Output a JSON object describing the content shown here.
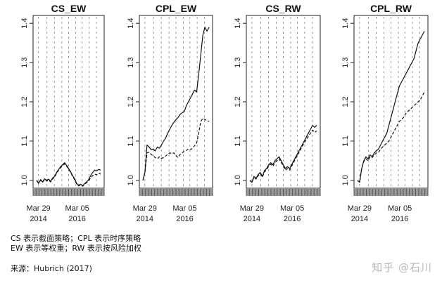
{
  "chart_data": [
    {
      "type": "line",
      "title": "CS_EW",
      "xticks": [
        "Mar 29\n2014",
        "Mar 05\n2016"
      ],
      "yticks": [
        1.0,
        1.1,
        1.2,
        1.3,
        1.4
      ],
      "ylim": [
        0.98,
        1.42
      ],
      "grid": "vertical-dashed",
      "series": [
        {
          "style": "solid",
          "values": [
            1.0,
            0.992,
            1.002,
            0.996,
            1.004,
            1.0,
            1.003,
            0.998,
            1.006,
            1.01,
            1.02,
            1.028,
            1.035,
            1.04,
            1.045,
            1.038,
            1.03,
            1.022,
            1.012,
            1.004,
            0.992,
            0.988,
            0.99,
            0.986,
            0.992,
            0.996,
            1.002,
            1.012,
            1.02,
            1.026,
            1.024,
            1.028,
            1.026
          ]
        },
        {
          "style": "dashed",
          "values": [
            1.0,
            0.994,
            1.0,
            0.995,
            1.002,
            0.998,
            1.001,
            0.996,
            1.004,
            1.008,
            1.018,
            1.026,
            1.032,
            1.038,
            1.042,
            1.036,
            1.028,
            1.02,
            1.01,
            1.002,
            0.99,
            0.986,
            0.988,
            0.985,
            0.99,
            0.994,
            0.999,
            1.006,
            1.012,
            1.016,
            1.014,
            1.018,
            1.016
          ]
        }
      ]
    },
    {
      "type": "line",
      "title": "CPL_EW",
      "xticks": [
        "Mar 29\n2014",
        "Mar 05\n2016"
      ],
      "yticks": [
        1.0,
        1.1,
        1.2,
        1.3,
        1.4
      ],
      "ylim": [
        0.98,
        1.42
      ],
      "grid": "vertical-dashed",
      "series": [
        {
          "style": "solid",
          "values": [
            1.0,
            1.02,
            1.09,
            1.085,
            1.078,
            1.08,
            1.075,
            1.085,
            1.082,
            1.09,
            1.1,
            1.108,
            1.12,
            1.13,
            1.14,
            1.148,
            1.155,
            1.16,
            1.168,
            1.172,
            1.175,
            1.19,
            1.2,
            1.21,
            1.22,
            1.23,
            1.225,
            1.27,
            1.32,
            1.37,
            1.39,
            1.38,
            1.39
          ]
        },
        {
          "style": "dashed",
          "values": [
            1.0,
            1.02,
            1.07,
            1.072,
            1.066,
            1.062,
            1.058,
            1.055,
            1.06,
            1.056,
            1.058,
            1.062,
            1.066,
            1.07,
            1.068,
            1.07,
            1.063,
            1.058,
            1.066,
            1.07,
            1.074,
            1.076,
            1.08,
            1.078,
            1.082,
            1.088,
            1.095,
            1.12,
            1.15,
            1.158,
            1.155,
            1.152,
            1.15
          ]
        }
      ]
    },
    {
      "type": "line",
      "title": "CS_RW",
      "xticks": [
        "Mar 29\n2014",
        "Mar 05\n2016"
      ],
      "yticks": [
        1.0,
        1.1,
        1.2,
        1.3,
        1.4
      ],
      "ylim": [
        0.98,
        1.42
      ],
      "grid": "vertical-dashed",
      "series": [
        {
          "style": "solid",
          "values": [
            1.0,
            0.995,
            1.01,
            1.005,
            1.015,
            1.02,
            1.01,
            1.025,
            1.03,
            1.04,
            1.045,
            1.04,
            1.05,
            1.055,
            1.06,
            1.05,
            1.04,
            1.03,
            1.035,
            1.03,
            1.04,
            1.05,
            1.06,
            1.07,
            1.08,
            1.09,
            1.1,
            1.11,
            1.12,
            1.13,
            1.14,
            1.135,
            1.14
          ]
        },
        {
          "style": "dashed",
          "values": [
            1.0,
            0.995,
            1.008,
            1.003,
            1.012,
            1.017,
            1.008,
            1.022,
            1.027,
            1.036,
            1.041,
            1.036,
            1.045,
            1.05,
            1.055,
            1.046,
            1.036,
            1.026,
            1.03,
            1.026,
            1.036,
            1.046,
            1.056,
            1.066,
            1.076,
            1.086,
            1.095,
            1.104,
            1.112,
            1.12,
            1.128,
            1.122,
            1.126
          ]
        }
      ]
    },
    {
      "type": "line",
      "title": "CPL_RW",
      "xticks": [
        "Mar 29\n2014",
        "Mar 05\n2016"
      ],
      "yticks": [
        1.0,
        1.1,
        1.2,
        1.3,
        1.4
      ],
      "ylim": [
        0.98,
        1.42
      ],
      "grid": "vertical-dashed",
      "series": [
        {
          "style": "solid",
          "values": [
            1.0,
            0.995,
            1.03,
            1.05,
            1.06,
            1.055,
            1.065,
            1.06,
            1.07,
            1.075,
            1.08,
            1.09,
            1.1,
            1.11,
            1.12,
            1.14,
            1.16,
            1.18,
            1.2,
            1.22,
            1.24,
            1.25,
            1.26,
            1.27,
            1.28,
            1.29,
            1.3,
            1.31,
            1.33,
            1.35,
            1.36,
            1.37,
            1.38
          ]
        },
        {
          "style": "dashed",
          "values": [
            1.0,
            0.995,
            1.03,
            1.048,
            1.055,
            1.05,
            1.06,
            1.058,
            1.065,
            1.07,
            1.072,
            1.078,
            1.085,
            1.09,
            1.095,
            1.1,
            1.11,
            1.12,
            1.13,
            1.14,
            1.15,
            1.155,
            1.16,
            1.17,
            1.175,
            1.18,
            1.185,
            1.19,
            1.195,
            1.2,
            1.205,
            1.215,
            1.225
          ]
        }
      ]
    }
  ],
  "captions": {
    "line1": "CS 表示截面策略；CPL 表示时序策略",
    "line2": "EW 表示等权重；RW 表示按风险加权",
    "source": "来源：Hubrich (2017)"
  },
  "watermark": "知乎 @石川"
}
